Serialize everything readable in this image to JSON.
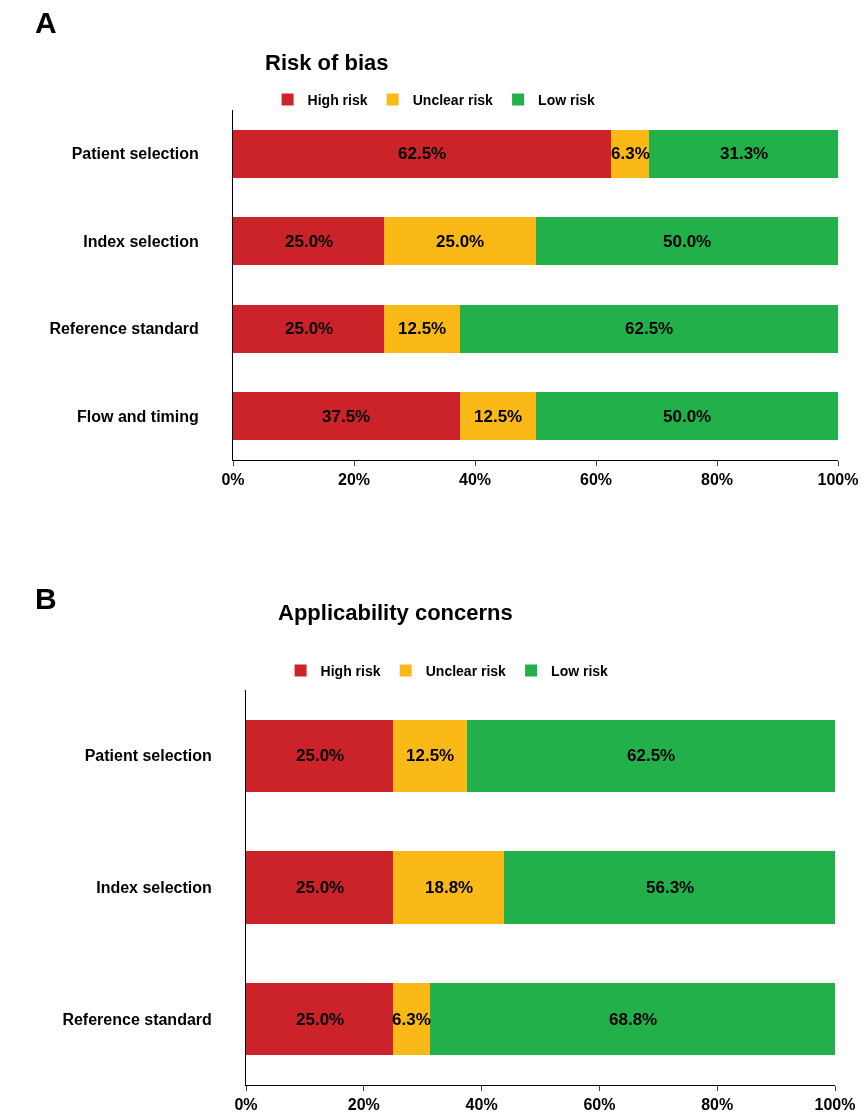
{
  "chart_data": [
    {
      "type": "bar",
      "orientation": "horizontal",
      "stacked": true,
      "title": "Risk of bias",
      "annotations": [
        "A"
      ],
      "legend": "top left",
      "categories": [
        "Patient selection",
        "Index selection",
        "Reference standard",
        "Flow and timing"
      ],
      "series": [
        {
          "name": "High risk",
          "color": "#cc2229",
          "values": [
            62.5,
            25.0,
            25.0,
            37.5
          ],
          "value_labels": [
            "62.5%",
            "25.0%",
            "25.0%",
            "37.5%"
          ]
        },
        {
          "name": "Unclear risk",
          "color": "#fbb917",
          "values": [
            6.3,
            25.0,
            12.5,
            12.5
          ],
          "value_labels": [
            "6.3%",
            "25.0%",
            "12.5%",
            "12.5%"
          ]
        },
        {
          "name": "Low risk",
          "color": "#22b04b",
          "values": [
            31.3,
            50.0,
            62.5,
            50.0
          ],
          "value_labels": [
            "31.3%",
            "50.0%",
            "62.5%",
            "50.0%"
          ]
        }
      ],
      "xlim": [
        0,
        100
      ],
      "xticks": [
        {
          "value": 0,
          "label": "0%"
        },
        {
          "value": 20,
          "label": "20%"
        },
        {
          "value": 40,
          "label": "40%"
        },
        {
          "value": 60,
          "label": "60%"
        },
        {
          "value": 80,
          "label": "80%"
        },
        {
          "value": 100,
          "label": "100%"
        }
      ]
    },
    {
      "type": "bar",
      "orientation": "horizontal",
      "stacked": true,
      "title": "Applicability concerns",
      "annotations": [
        "B"
      ],
      "legend": "top left",
      "categories": [
        "Patient selection",
        "Index selection",
        "Reference standard"
      ],
      "series": [
        {
          "name": "High risk",
          "color": "#cc2229",
          "values": [
            25.0,
            25.0,
            25.0
          ],
          "value_labels": [
            "25.0%",
            "25.0%",
            "25.0%"
          ]
        },
        {
          "name": "Unclear risk",
          "color": "#fbb917",
          "values": [
            12.5,
            18.8,
            6.3
          ],
          "value_labels": [
            "12.5%",
            "18.8%",
            "6.3%"
          ]
        },
        {
          "name": "Low risk",
          "color": "#22b04b",
          "values": [
            62.5,
            56.3,
            68.8
          ],
          "value_labels": [
            "62.5%",
            "56.3%",
            "68.8%"
          ]
        }
      ],
      "xlim": [
        0,
        100
      ],
      "xticks": [
        {
          "value": 0,
          "label": "0%"
        },
        {
          "value": 20,
          "label": "20%"
        },
        {
          "value": 40,
          "label": "40%"
        },
        {
          "value": 60,
          "label": "60%"
        },
        {
          "value": 80,
          "label": "80%"
        },
        {
          "value": 100,
          "label": "100%"
        }
      ]
    }
  ]
}
